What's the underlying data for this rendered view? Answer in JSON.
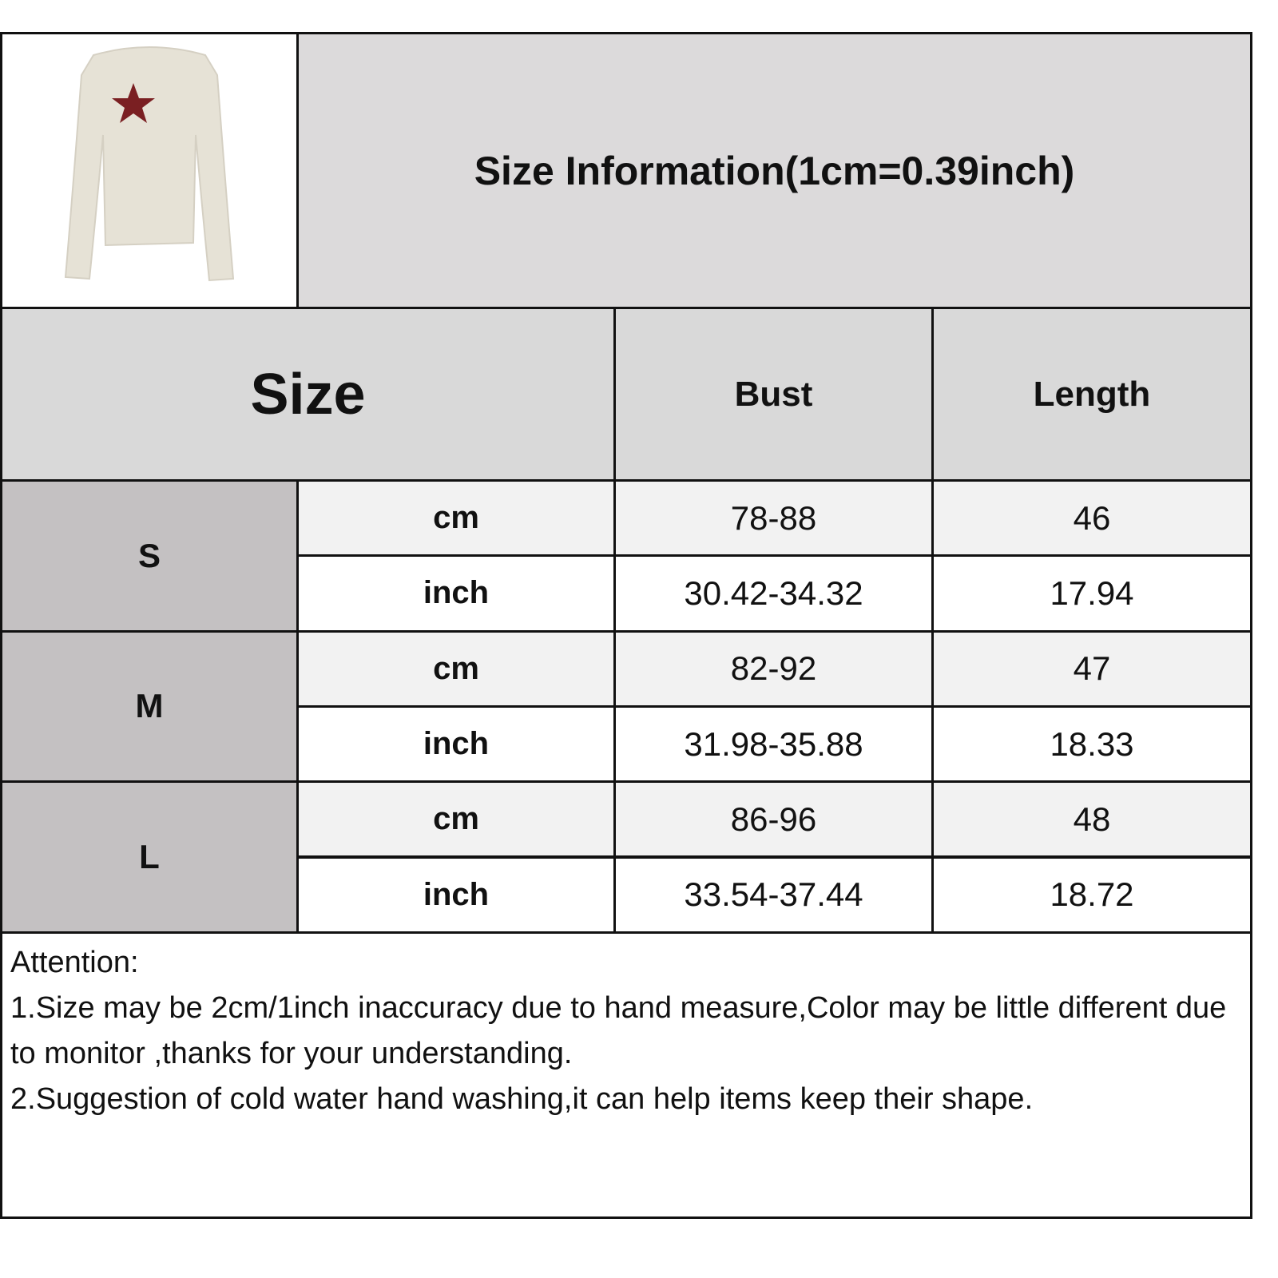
{
  "title": "Size Information(1cm=0.39inch)",
  "product_image": {
    "description_icon": "long-sleeve-top-with-star-icon",
    "star_color": "#7a1f22",
    "garment_color": "#e6e2d6"
  },
  "headers": {
    "size": "Size",
    "bust": "Bust",
    "length": "Length"
  },
  "rows": [
    {
      "size": "S",
      "cm": {
        "unit": "cm",
        "bust": "78-88",
        "length": "46"
      },
      "inch": {
        "unit": "inch",
        "bust": "30.42-34.32",
        "length": "17.94"
      }
    },
    {
      "size": "M",
      "cm": {
        "unit": "cm",
        "bust": "82-92",
        "length": "47"
      },
      "inch": {
        "unit": "inch",
        "bust": "31.98-35.88",
        "length": "18.33"
      }
    },
    {
      "size": "L",
      "cm": {
        "unit": "cm",
        "bust": "86-96",
        "length": "48"
      },
      "inch": {
        "unit": "inch",
        "bust": "33.54-37.44",
        "length": "18.72"
      }
    }
  ],
  "attention": {
    "heading": "Attention:",
    "lines": [
      "1.Size may be 2cm/1inch inaccuracy due to hand measure,Color may be little different due to monitor ,thanks for your understanding.",
      "2.Suggestion of cold water hand washing,it can help items keep their shape."
    ]
  }
}
